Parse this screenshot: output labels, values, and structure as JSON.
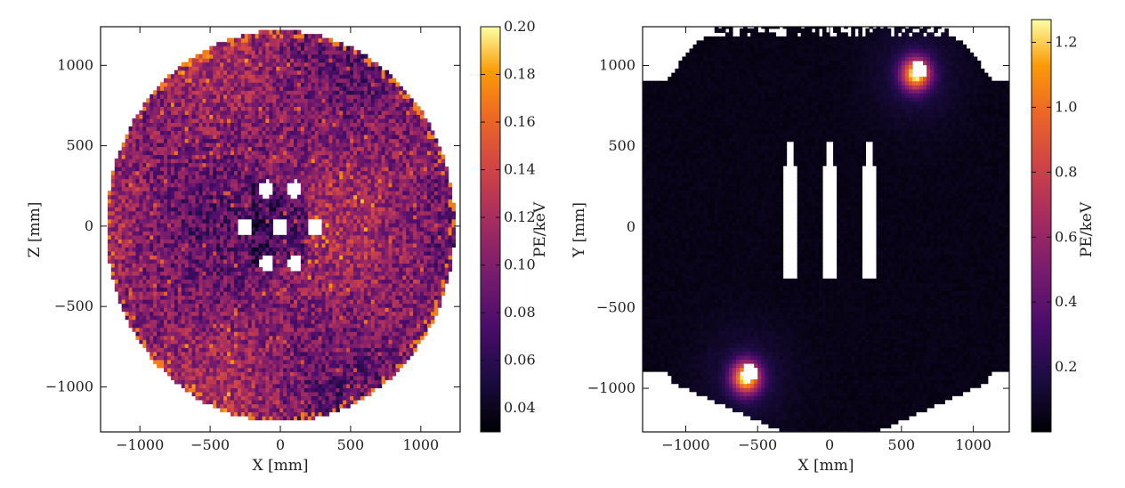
{
  "chart_data": [
    {
      "type": "heatmap",
      "xlabel": "X [mm]",
      "ylabel": "Z [mm]",
      "xlim": [
        -1280,
        1280
      ],
      "ylim": [
        -1280,
        1240
      ],
      "xticks": [
        -1000,
        -500,
        0,
        500,
        1000
      ],
      "yticks": [
        -1000,
        -500,
        0,
        500,
        1000
      ],
      "xtick_labels": [
        "−1000",
        "−500",
        "0",
        "500",
        "1000"
      ],
      "ytick_labels": [
        "−1000",
        "−500",
        "0",
        "500",
        "1000"
      ],
      "colorbar": {
        "label": "PE/keV",
        "range": [
          0.03,
          0.2
        ],
        "ticks": [
          0.04,
          0.06,
          0.08,
          0.1,
          0.12,
          0.14,
          0.16,
          0.18,
          0.2
        ],
        "tick_labels": [
          "0.04",
          "0.06",
          "0.08",
          "0.10",
          "0.12",
          "0.14",
          "0.16",
          "0.18",
          "0.20"
        ],
        "colormap": "inferno"
      },
      "pattern": "uniform disk of radius ~1240 mm with value ~0.10 PE/keV, 8 blank holes near center"
    },
    {
      "type": "heatmap",
      "xlabel": "X [mm]",
      "ylabel": "Y [mm]",
      "xlim": [
        -1300,
        1250
      ],
      "ylim": [
        -1270,
        1240
      ],
      "xticks": [
        -1000,
        -500,
        0,
        500,
        1000
      ],
      "yticks": [
        -1000,
        -500,
        0,
        500,
        1000
      ],
      "xtick_labels": [
        "−1000",
        "−500",
        "0",
        "500",
        "1000"
      ],
      "ytick_labels": [
        "−1000",
        "−500",
        "0",
        "500",
        "1000"
      ],
      "colorbar": {
        "label": "PE/keV",
        "range": [
          0.0,
          1.27
        ],
        "ticks": [
          0.2,
          0.4,
          0.6,
          0.8,
          1.0,
          1.2
        ],
        "tick_labels": [
          "0.2",
          "0.4",
          "0.6",
          "0.8",
          "1.0",
          "1.2"
        ],
        "colormap": "inferno"
      },
      "pattern": "low background ~0.05 PE/keV, hot spots near (600, 950) and (-580, -930), three vertical blank bars at x = -280, 0, 280"
    }
  ]
}
